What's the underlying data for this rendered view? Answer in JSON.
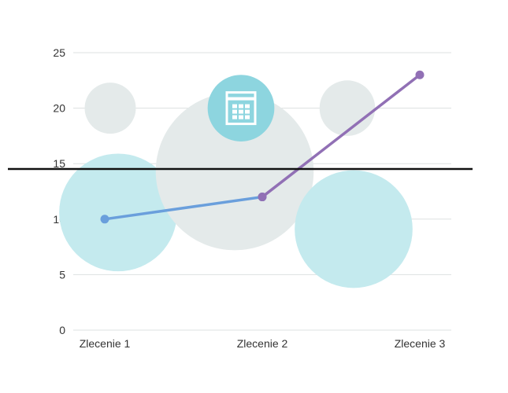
{
  "chart_data": {
    "type": "line",
    "title": "",
    "xlabel": "",
    "ylabel": "",
    "categories": [
      "Zlecenie 1",
      "Zlecenie 2",
      "Zlecenie 3"
    ],
    "ylim": [
      0,
      25
    ],
    "yticks": [
      0,
      5,
      10,
      15,
      20,
      25
    ],
    "grid": true,
    "series": [
      {
        "name": "blue",
        "color": "#6a9fdc",
        "points": [
          [
            0,
            10
          ],
          [
            1,
            12
          ]
        ]
      },
      {
        "name": "purple",
        "color": "#9170b5",
        "points": [
          [
            1,
            12
          ],
          [
            2,
            23
          ]
        ]
      }
    ],
    "bubbles": [
      {
        "x": 0.04,
        "y": 20,
        "size": 2.3,
        "color": "#e4eaea"
      },
      {
        "x": 0.08,
        "y": 10.6,
        "size": 5.3,
        "color": "#c4eaee"
      },
      {
        "x": 0.83,
        "y": 14.3,
        "size": 7.1,
        "color": "#e4eaea"
      },
      {
        "x": 2.7,
        "y": 9.1,
        "size": 5.3,
        "color": "#c4eaee",
        "xi": 1.58
      },
      {
        "x": 1.54,
        "y": 20,
        "size": 2.5,
        "color": "#e4eaea"
      },
      {
        "x": 0.87,
        "y": 20,
        "size": 3.0,
        "color": "#8dd5df",
        "icon": "calendar-icon"
      }
    ],
    "reference_line": {
      "y": 14.5,
      "color": "#111111"
    }
  }
}
